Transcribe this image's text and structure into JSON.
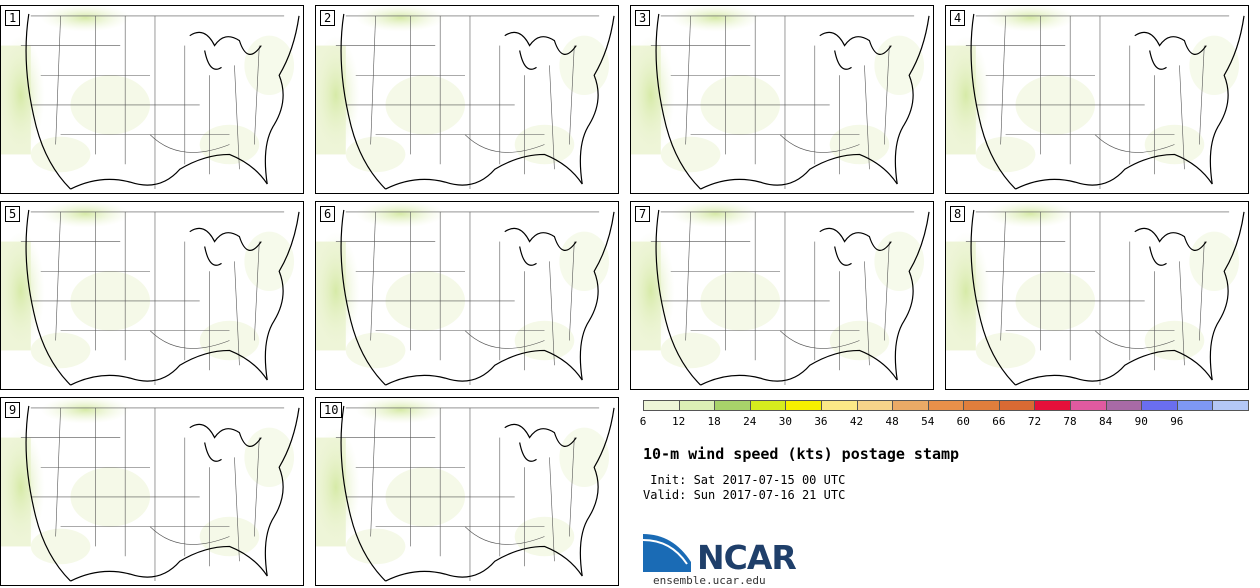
{
  "panels": [
    {
      "member": "1"
    },
    {
      "member": "2"
    },
    {
      "member": "3"
    },
    {
      "member": "4"
    },
    {
      "member": "5"
    },
    {
      "member": "6"
    },
    {
      "member": "7"
    },
    {
      "member": "8"
    },
    {
      "member": "9"
    },
    {
      "member": "10"
    }
  ],
  "colorbar": {
    "ticks": [
      "6",
      "12",
      "18",
      "24",
      "30",
      "36",
      "42",
      "48",
      "54",
      "60",
      "66",
      "72",
      "78",
      "84",
      "90",
      "96"
    ],
    "colors": [
      "#eef5d8",
      "#dcefb5",
      "#a8d26a",
      "#d6ec1e",
      "#f7f000",
      "#fbe887",
      "#f7d48a",
      "#eaaa66",
      "#e8904a",
      "#e07e3c",
      "#d96a33",
      "#e5103a",
      "#e05aa0",
      "#a86aa6",
      "#6a6ef0",
      "#7e98f4",
      "#b4c8f6"
    ]
  },
  "title": "10-m wind speed (kts) postage stamp",
  "init": " Init: Sat 2017-07-15 00 UTC",
  "valid": "Valid: Sun 2017-07-16 21 UTC",
  "logo": {
    "name": "NCAR",
    "color": "#1a6bb5"
  },
  "site": "ensemble.ucar.edu"
}
